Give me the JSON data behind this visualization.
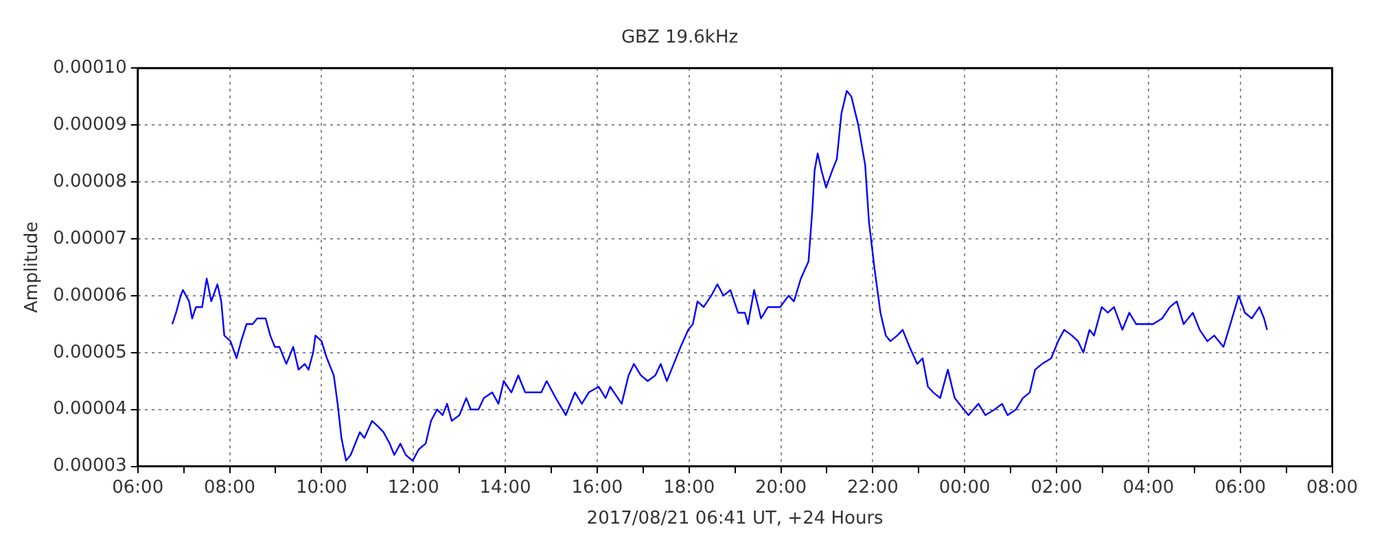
{
  "chart_data": {
    "type": "line",
    "title": "GBZ 19.6kHz",
    "xlabel": "2017/08/21 06:41 UT, +24 Hours",
    "ylabel": "Amplitude",
    "x": [
      "2017-08-21T06:45",
      "2017-08-21T06:50",
      "2017-08-21T06:56",
      "2017-08-21T06:59",
      "2017-08-21T07:07",
      "2017-08-21T07:11",
      "2017-08-21T07:16",
      "2017-08-21T07:24",
      "2017-08-21T07:30",
      "2017-08-21T07:36",
      "2017-08-21T07:44",
      "2017-08-21T07:49",
      "2017-08-21T07:53",
      "2017-08-21T08:01",
      "2017-08-21T08:09",
      "2017-08-21T08:15",
      "2017-08-21T08:22",
      "2017-08-21T08:30",
      "2017-08-21T08:36",
      "2017-08-21T08:47",
      "2017-08-21T08:53",
      "2017-08-21T08:59",
      "2017-08-21T09:05",
      "2017-08-21T09:14",
      "2017-08-21T09:23",
      "2017-08-21T09:30",
      "2017-08-21T09:38",
      "2017-08-21T09:43",
      "2017-08-21T09:49",
      "2017-08-21T09:52",
      "2017-08-21T10:00",
      "2017-08-21T10:07",
      "2017-08-21T10:16",
      "2017-08-21T10:21",
      "2017-08-21T10:26",
      "2017-08-21T10:32",
      "2017-08-21T10:38",
      "2017-08-21T10:44",
      "2017-08-21T10:50",
      "2017-08-21T10:56",
      "2017-08-21T11:06",
      "2017-08-21T11:14",
      "2017-08-21T11:21",
      "2017-08-21T11:29",
      "2017-08-21T11:35",
      "2017-08-21T11:43",
      "2017-08-21T11:50",
      "2017-08-21T11:59",
      "2017-08-21T12:07",
      "2017-08-21T12:16",
      "2017-08-21T12:23",
      "2017-08-21T12:31",
      "2017-08-21T12:38",
      "2017-08-21T12:44",
      "2017-08-21T12:50",
      "2017-08-21T13:00",
      "2017-08-21T13:09",
      "2017-08-21T13:15",
      "2017-08-21T13:25",
      "2017-08-21T13:32",
      "2017-08-21T13:43",
      "2017-08-21T13:51",
      "2017-08-21T13:58",
      "2017-08-21T14:08",
      "2017-08-21T14:17",
      "2017-08-21T14:26",
      "2017-08-21T14:38",
      "2017-08-21T14:47",
      "2017-08-21T14:54",
      "2017-08-21T15:06",
      "2017-08-21T15:19",
      "2017-08-21T15:31",
      "2017-08-21T15:40",
      "2017-08-21T15:49",
      "2017-08-21T16:02",
      "2017-08-21T16:11",
      "2017-08-21T16:17",
      "2017-08-21T16:32",
      "2017-08-21T16:41",
      "2017-08-21T16:48",
      "2017-08-21T16:57",
      "2017-08-21T17:06",
      "2017-08-21T17:16",
      "2017-08-21T17:23",
      "2017-08-21T17:31",
      "2017-08-21T17:40",
      "2017-08-21T17:49",
      "2017-08-21T17:59",
      "2017-08-21T18:05",
      "2017-08-21T18:11",
      "2017-08-21T18:19",
      "2017-08-21T18:29",
      "2017-08-21T18:37",
      "2017-08-21T18:45",
      "2017-08-21T18:54",
      "2017-08-21T19:04",
      "2017-08-21T19:13",
      "2017-08-21T19:17",
      "2017-08-21T19:25",
      "2017-08-21T19:34",
      "2017-08-21T19:43",
      "2017-08-21T19:59",
      "2017-08-21T20:10",
      "2017-08-21T20:17",
      "2017-08-21T20:26",
      "2017-08-21T20:36",
      "2017-08-21T20:41",
      "2017-08-21T20:44",
      "2017-08-21T20:48",
      "2017-08-21T20:53",
      "2017-08-21T20:59",
      "2017-08-21T21:07",
      "2017-08-21T21:13",
      "2017-08-21T21:19",
      "2017-08-21T21:26",
      "2017-08-21T21:32",
      "2017-08-21T21:41",
      "2017-08-21T21:50",
      "2017-08-21T21:55",
      "2017-08-21T22:02",
      "2017-08-21T22:10",
      "2017-08-21T22:17",
      "2017-08-21T22:23",
      "2017-08-21T22:32",
      "2017-08-21T22:39",
      "2017-08-21T22:48",
      "2017-08-21T22:58",
      "2017-08-21T23:05",
      "2017-08-21T23:12",
      "2017-08-21T23:19",
      "2017-08-21T23:28",
      "2017-08-21T23:38",
      "2017-08-21T23:47",
      "2017-08-21T23:53",
      "2017-08-22T00:05",
      "2017-08-22T00:18",
      "2017-08-22T00:27",
      "2017-08-22T00:39",
      "2017-08-22T00:49",
      "2017-08-22T00:56",
      "2017-08-22T01:07",
      "2017-08-22T01:16",
      "2017-08-22T01:25",
      "2017-08-22T01:32",
      "2017-08-22T01:41",
      "2017-08-22T01:53",
      "2017-08-22T02:02",
      "2017-08-22T02:10",
      "2017-08-22T02:20",
      "2017-08-22T02:28",
      "2017-08-22T02:35",
      "2017-08-22T02:43",
      "2017-08-22T02:49",
      "2017-08-22T02:59",
      "2017-08-22T03:07",
      "2017-08-22T03:15",
      "2017-08-22T03:26",
      "2017-08-22T03:35",
      "2017-08-22T03:44",
      "2017-08-22T03:53",
      "2017-08-22T04:06",
      "2017-08-22T04:18",
      "2017-08-22T04:28",
      "2017-08-22T04:37",
      "2017-08-22T04:46",
      "2017-08-22T04:58",
      "2017-08-22T05:07",
      "2017-08-22T05:17",
      "2017-08-22T05:26",
      "2017-08-22T05:38",
      "2017-08-22T05:47",
      "2017-08-22T05:58",
      "2017-08-22T06:06",
      "2017-08-22T06:15",
      "2017-08-22T06:25",
      "2017-08-22T06:31",
      "2017-08-22T06:35"
    ],
    "series": [
      {
        "color": "#0000ff",
        "values": [
          5.5e-05,
          5.7e-05,
          6e-05,
          6.1e-05,
          5.9e-05,
          5.6e-05,
          5.8e-05,
          5.8e-05,
          6.3e-05,
          5.9e-05,
          6.2e-05,
          5.9e-05,
          5.3e-05,
          5.2e-05,
          4.9e-05,
          5.2e-05,
          5.5e-05,
          5.5e-05,
          5.6e-05,
          5.6e-05,
          5.3e-05,
          5.1e-05,
          5.1e-05,
          4.8e-05,
          5.1e-05,
          4.7e-05,
          4.8e-05,
          4.7e-05,
          5e-05,
          5.3e-05,
          5.2e-05,
          4.9e-05,
          4.6e-05,
          4.1e-05,
          3.5e-05,
          3.1e-05,
          3.2e-05,
          3.4e-05,
          3.6e-05,
          3.5e-05,
          3.8e-05,
          3.7e-05,
          3.6e-05,
          3.4e-05,
          3.2e-05,
          3.4e-05,
          3.2e-05,
          3.1e-05,
          3.3e-05,
          3.4e-05,
          3.8e-05,
          4e-05,
          3.9e-05,
          4.1e-05,
          3.8e-05,
          3.9e-05,
          4.2e-05,
          4e-05,
          4e-05,
          4.2e-05,
          4.3e-05,
          4.1e-05,
          4.5e-05,
          4.3e-05,
          4.6e-05,
          4.3e-05,
          4.3e-05,
          4.3e-05,
          4.5e-05,
          4.2e-05,
          3.9e-05,
          4.3e-05,
          4.1e-05,
          4.3e-05,
          4.4e-05,
          4.2e-05,
          4.4e-05,
          4.1e-05,
          4.6e-05,
          4.8e-05,
          4.6e-05,
          4.5e-05,
          4.6e-05,
          4.8e-05,
          4.5e-05,
          4.8e-05,
          5.1e-05,
          5.4e-05,
          5.5e-05,
          5.9e-05,
          5.8e-05,
          6e-05,
          6.2e-05,
          6e-05,
          6.1e-05,
          5.7e-05,
          5.7e-05,
          5.5e-05,
          6.1e-05,
          5.6e-05,
          5.8e-05,
          5.8e-05,
          6e-05,
          5.9e-05,
          6.3e-05,
          6.6e-05,
          7.5e-05,
          8.2e-05,
          8.5e-05,
          8.2e-05,
          7.9e-05,
          8.2e-05,
          8.4e-05,
          9.2e-05,
          9.6e-05,
          9.5e-05,
          9e-05,
          8.3e-05,
          7.3e-05,
          6.5e-05,
          5.7e-05,
          5.3e-05,
          5.2e-05,
          5.3e-05,
          5.4e-05,
          5.1e-05,
          4.8e-05,
          4.9e-05,
          4.4e-05,
          4.3e-05,
          4.2e-05,
          4.7e-05,
          4.2e-05,
          4.1e-05,
          3.9e-05,
          4.1e-05,
          3.9e-05,
          4e-05,
          4.1e-05,
          3.9e-05,
          4e-05,
          4.2e-05,
          4.3e-05,
          4.7e-05,
          4.8e-05,
          4.9e-05,
          5.2e-05,
          5.4e-05,
          5.3e-05,
          5.2e-05,
          5e-05,
          5.4e-05,
          5.3e-05,
          5.8e-05,
          5.7e-05,
          5.8e-05,
          5.4e-05,
          5.7e-05,
          5.5e-05,
          5.5e-05,
          5.5e-05,
          5.6e-05,
          5.8e-05,
          5.9e-05,
          5.5e-05,
          5.7e-05,
          5.4e-05,
          5.2e-05,
          5.3e-05,
          5.1e-05,
          5.5e-05,
          6e-05,
          5.7e-05,
          5.6e-05,
          5.8e-05,
          5.6e-05,
          5.4e-05
        ]
      }
    ],
    "xlim": [
      "2017-08-21T06:00",
      "2017-08-22T08:00"
    ],
    "xticks": [
      {
        "value": "2017-08-21T06:00",
        "label": "06:00"
      },
      {
        "value": "2017-08-21T07:00",
        "label": null
      },
      {
        "value": "2017-08-21T08:00",
        "label": "08:00"
      },
      {
        "value": "2017-08-21T09:00",
        "label": null
      },
      {
        "value": "2017-08-21T10:00",
        "label": "10:00"
      },
      {
        "value": "2017-08-21T11:00",
        "label": null
      },
      {
        "value": "2017-08-21T12:00",
        "label": "12:00"
      },
      {
        "value": "2017-08-21T13:00",
        "label": null
      },
      {
        "value": "2017-08-21T14:00",
        "label": "14:00"
      },
      {
        "value": "2017-08-21T15:00",
        "label": null
      },
      {
        "value": "2017-08-21T16:00",
        "label": "16:00"
      },
      {
        "value": "2017-08-21T17:00",
        "label": null
      },
      {
        "value": "2017-08-21T18:00",
        "label": "18:00"
      },
      {
        "value": "2017-08-21T19:00",
        "label": null
      },
      {
        "value": "2017-08-21T20:00",
        "label": "20:00"
      },
      {
        "value": "2017-08-21T21:00",
        "label": null
      },
      {
        "value": "2017-08-21T22:00",
        "label": "22:00"
      },
      {
        "value": "2017-08-21T23:00",
        "label": null
      },
      {
        "value": "2017-08-22T00:00",
        "label": "00:00"
      },
      {
        "value": "2017-08-22T01:00",
        "label": null
      },
      {
        "value": "2017-08-22T02:00",
        "label": "02:00"
      },
      {
        "value": "2017-08-22T03:00",
        "label": null
      },
      {
        "value": "2017-08-22T04:00",
        "label": "04:00"
      },
      {
        "value": "2017-08-22T05:00",
        "label": null
      },
      {
        "value": "2017-08-22T06:00",
        "label": "06:00"
      },
      {
        "value": "2017-08-22T07:00",
        "label": null
      },
      {
        "value": "2017-08-22T08:00",
        "label": "08:00"
      }
    ],
    "ylim": [
      3e-05,
      0.0001
    ],
    "yticks": [
      {
        "value": 3e-05,
        "label": "0.00003"
      },
      {
        "value": 4e-05,
        "label": "0.00004"
      },
      {
        "value": 5e-05,
        "label": "0.00005"
      },
      {
        "value": 6e-05,
        "label": "0.00006"
      },
      {
        "value": 7e-05,
        "label": "0.00007"
      },
      {
        "value": 8e-05,
        "label": "0.00008"
      },
      {
        "value": 9e-05,
        "label": "0.00009"
      },
      {
        "value": 0.0001,
        "label": "0.00010"
      }
    ],
    "grid": true,
    "legend": false
  }
}
